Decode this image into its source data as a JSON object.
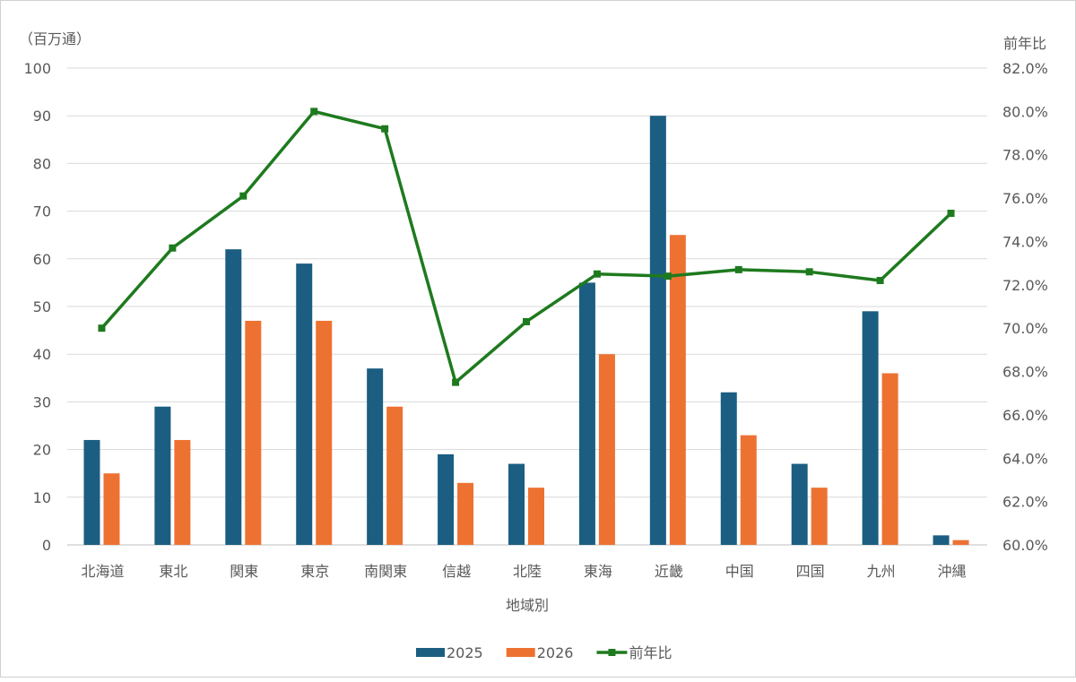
{
  "chart_data": {
    "type": "bar",
    "title": "",
    "xlabel": "地域別",
    "ylabel": "（百万通）",
    "y2label": "前年比",
    "ylim": [
      0,
      100
    ],
    "y2lim": [
      60.0,
      82.0
    ],
    "yticks": [
      "0",
      "10",
      "20",
      "30",
      "40",
      "50",
      "60",
      "70",
      "80",
      "90",
      "100"
    ],
    "y2ticks": [
      "60.0%",
      "62.0%",
      "64.0%",
      "66.0%",
      "68.0%",
      "70.0%",
      "72.0%",
      "74.0%",
      "76.0%",
      "78.0%",
      "80.0%",
      "82.0%"
    ],
    "grid": true,
    "legend": "bottom",
    "categories": [
      "北海道",
      "東北",
      "関東",
      "東京",
      "南関東",
      "信越",
      "北陸",
      "東海",
      "近畿",
      "中国",
      "四国",
      "九州",
      "沖縄"
    ],
    "series": [
      {
        "name": "2025",
        "type": "bar",
        "axis": "left",
        "color": "#1b5e82",
        "values": [
          22,
          29,
          62,
          59,
          37,
          19,
          17,
          55,
          90,
          32,
          17,
          49,
          2
        ]
      },
      {
        "name": "2026",
        "type": "bar",
        "axis": "left",
        "color": "#ed7232",
        "values": [
          15,
          22,
          47,
          47,
          29,
          13,
          12,
          40,
          65,
          23,
          12,
          36,
          1
        ]
      },
      {
        "name": "前年比",
        "type": "line",
        "axis": "right",
        "color": "#1e7a1e",
        "values": [
          70.0,
          73.7,
          76.1,
          80.0,
          79.2,
          67.5,
          70.3,
          72.5,
          72.4,
          72.7,
          72.6,
          72.2,
          75.3
        ]
      }
    ]
  }
}
